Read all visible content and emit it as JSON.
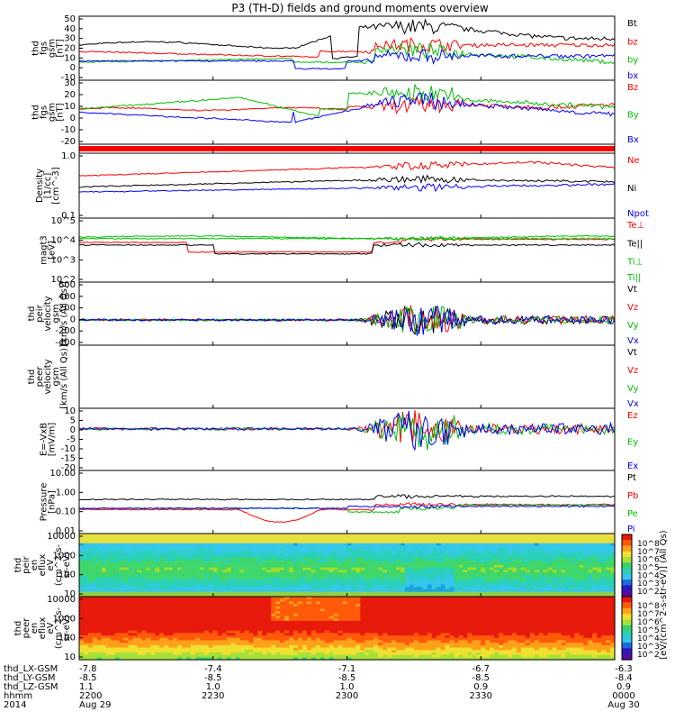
{
  "title": "P3 (TH-D) fields and ground moments overview",
  "time_axis": {
    "range": [
      "2200",
      "0000"
    ],
    "rows": [
      {
        "label": "thd_LX-GSM",
        "values": [
          "-7.8",
          "-7.4",
          "-7.1",
          "-6.7",
          "-6.3"
        ]
      },
      {
        "label": "thd_LY-GSM",
        "values": [
          "-8.5",
          "-8.5",
          "-8.5",
          "-8.5",
          "-8.4"
        ]
      },
      {
        "label": "thd_LZ-GSM",
        "values": [
          "1.1",
          "1.0",
          "1.0",
          "0.9",
          "0.9"
        ]
      },
      {
        "label": "hhmm",
        "values": [
          "2200",
          "2230",
          "2300",
          "2330",
          "0000"
        ]
      },
      {
        "label": "2014",
        "values": [
          "Aug 29",
          "",
          "",
          "",
          "Aug 30"
        ]
      }
    ]
  },
  "colorbar": {
    "label": "[eV/(cm^2-s-str-eV)] (All Qs)",
    "ticks": [
      "10^8",
      "10^7",
      "10^6",
      "10^5",
      "10^4",
      "10^3",
      "10^2"
    ],
    "ticks2": [
      "10^8",
      "10^7",
      "10^6",
      "10^5",
      "10^4",
      "10^3",
      "10^2"
    ]
  },
  "chart_data": [
    {
      "type": "line",
      "id": "fgs_btotal",
      "ylabel": [
        "thd",
        "fgs",
        "gsm",
        "[nT]"
      ],
      "yticks": [
        "50",
        "40",
        "30",
        "20",
        "10",
        "0",
        "-10"
      ],
      "ylim": [
        -10,
        50
      ],
      "series": [
        {
          "name": "Bt",
          "color": "#000000"
        },
        {
          "name": "bz",
          "color": "#ff0000"
        },
        {
          "name": "by",
          "color": "#00c000"
        },
        {
          "name": "bx",
          "color": "#0000ff"
        }
      ]
    },
    {
      "type": "line",
      "id": "fgs_components",
      "ylabel": [
        "thd",
        "fgs",
        "gsm",
        "[nT]"
      ],
      "yticks": [
        "30",
        "20",
        "10",
        "0",
        "-10",
        "-20"
      ],
      "ylim": [
        -25,
        30
      ],
      "series": [
        {
          "name": "Bz",
          "color": "#ff0000"
        },
        {
          "name": "By",
          "color": "#00c000"
        },
        {
          "name": "Bx",
          "color": "#0000ff"
        }
      ]
    },
    {
      "type": "line",
      "id": "flag_bar",
      "ylabel": [],
      "yticks": [],
      "series": [
        {
          "name": "",
          "color": "#ff0000"
        }
      ]
    },
    {
      "type": "line",
      "id": "density",
      "ylabel": [
        "Density",
        "[1/cc]",
        "[cm^-3]"
      ],
      "yticks": [
        "1.0",
        "0.1"
      ],
      "scale": "log",
      "series": [
        {
          "name": "Ne",
          "color": "#ff0000"
        },
        {
          "name": "Ni",
          "color": "#000000"
        },
        {
          "name": "Npot",
          "color": "#0000ff"
        }
      ]
    },
    {
      "type": "line",
      "id": "temperature",
      "ylabel": [
        "magt3",
        "[eV]"
      ],
      "yticks": [
        "10^5",
        "10^4",
        "10^3",
        "10^2"
      ],
      "scale": "log",
      "series": [
        {
          "name": "Te⊥",
          "color": "#ff0000"
        },
        {
          "name": "Te||",
          "color": "#000000"
        },
        {
          "name": "Ti⊥",
          "color": "#00c000"
        },
        {
          "name": "Ti||",
          "color": "#00c000"
        }
      ]
    },
    {
      "type": "line",
      "id": "ion_velocity",
      "ylabel": [
        "thd",
        "peir",
        "velocity",
        "gsm",
        "[km/s (All Qs)]"
      ],
      "yticks": [
        "600",
        "400",
        "200",
        "0",
        "-200",
        "-400"
      ],
      "ylim": [
        -400,
        600
      ],
      "series": [
        {
          "name": "Vt",
          "color": "#000000"
        },
        {
          "name": "Vz",
          "color": "#ff0000"
        },
        {
          "name": "Vy",
          "color": "#00c000"
        },
        {
          "name": "Vx",
          "color": "#0000ff"
        }
      ]
    },
    {
      "type": "line",
      "id": "electron_velocity",
      "ylabel": [
        "thd",
        "peer",
        "velocity",
        "gsm",
        "[km/s (All Qs)]"
      ],
      "yticks": [],
      "series": [
        {
          "name": "Vt",
          "color": "#000000"
        },
        {
          "name": "Vz",
          "color": "#ff0000"
        },
        {
          "name": "Vy",
          "color": "#00c000"
        },
        {
          "name": "Vx",
          "color": "#0000ff"
        }
      ]
    },
    {
      "type": "line",
      "id": "efield",
      "ylabel": [
        "E=-VxB",
        "[mV/m]"
      ],
      "yticks": [
        "10",
        "5",
        "0",
        "-5",
        "-10",
        "-15",
        "-20"
      ],
      "ylim": [
        -20,
        10
      ],
      "series": [
        {
          "name": "Ez",
          "color": "#ff0000"
        },
        {
          "name": "Ey",
          "color": "#00c000"
        },
        {
          "name": "Ex",
          "color": "#0000ff"
        }
      ]
    },
    {
      "type": "line",
      "id": "pressure",
      "ylabel": [
        "Pressure",
        "[nPa]"
      ],
      "yticks": [
        "10.00",
        "1.00",
        "0.10",
        "0.01"
      ],
      "scale": "log",
      "series": [
        {
          "name": "Pt",
          "color": "#000000"
        },
        {
          "name": "Pb",
          "color": "#ff0000"
        },
        {
          "name": "Pe",
          "color": "#00c000"
        },
        {
          "name": "Pi",
          "color": "#0000ff"
        }
      ]
    },
    {
      "type": "heatmap",
      "id": "ion_spectrogram",
      "ylabel": [
        "thd",
        "peir",
        "en",
        "eflux",
        "eV",
        "(cm^2-s-",
        "sr-eV)"
      ],
      "yticks": [
        "10000",
        "1000",
        "100",
        "10"
      ],
      "scale": "log"
    },
    {
      "type": "heatmap",
      "id": "electron_spectrogram",
      "ylabel": [
        "thd",
        "peer",
        "en",
        "eflux",
        "eV",
        "(cm^2-s-",
        "sr-eV)"
      ],
      "yticks": [
        "10000",
        "1000",
        "100",
        "10"
      ],
      "scale": "log"
    }
  ]
}
